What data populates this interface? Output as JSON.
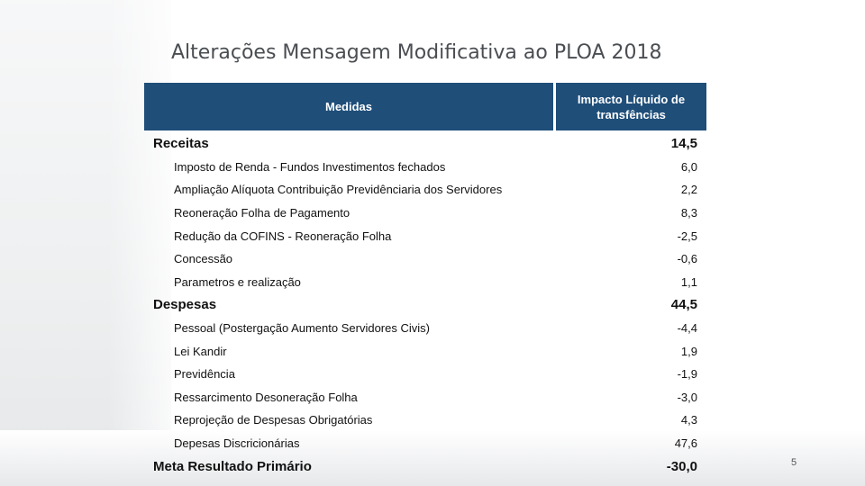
{
  "slide": {
    "title": "Alterações Mensagem Modificativa ao PLOA 2018",
    "page_number": "5"
  },
  "table": {
    "headers": {
      "medidas": "Medidas",
      "impacto": "Impacto Líquido de transfências"
    },
    "rows": [
      {
        "label": "Receitas",
        "value": "14,5",
        "kind": "major"
      },
      {
        "label": "Imposto de Renda - Fundos Investimentos fechados",
        "value": "6,0",
        "kind": "sub"
      },
      {
        "label": "Ampliação Alíquota Contribuição Previdênciaria dos Servidores",
        "value": "2,2",
        "kind": "sub"
      },
      {
        "label": "Reoneração Folha de Pagamento",
        "value": "8,3",
        "kind": "sub"
      },
      {
        "label": "Redução da COFINS - Reoneração Folha",
        "value": "-2,5",
        "kind": "sub"
      },
      {
        "label": "Concessão",
        "value": "-0,6",
        "kind": "sub"
      },
      {
        "label": "Parametros e realização",
        "value": "1,1",
        "kind": "sub"
      },
      {
        "label": "Despesas",
        "value": "44,5",
        "kind": "major"
      },
      {
        "label": "Pessoal (Postergação Aumento Servidores Civis)",
        "value": "-4,4",
        "kind": "sub"
      },
      {
        "label": "Lei Kandir",
        "value": "1,9",
        "kind": "sub"
      },
      {
        "label": "Previdência",
        "value": "-1,9",
        "kind": "sub"
      },
      {
        "label": "Ressarcimento Desoneração Folha",
        "value": "-3,0",
        "kind": "sub"
      },
      {
        "label": "Reprojeção de Despesas Obrigatórias",
        "value": "4,3",
        "kind": "sub"
      },
      {
        "label": "Depesas Discricionárias",
        "value": "47,6",
        "kind": "sub"
      },
      {
        "label": "Meta Resultado Primário",
        "value": "-30,0",
        "kind": "major"
      }
    ]
  }
}
